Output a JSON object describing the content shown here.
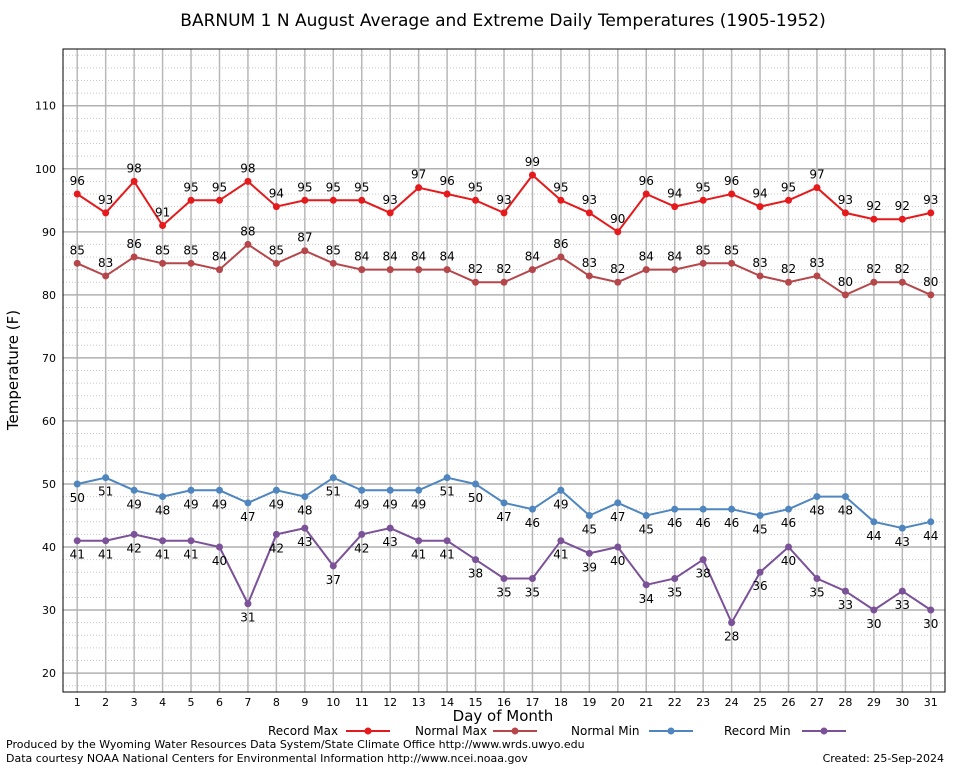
{
  "chart_data": {
    "type": "line",
    "title": "BARNUM 1 N August Average and Extreme Daily Temperatures (1905-1952)",
    "xlabel": "Day of Month",
    "ylabel": "Temperature (F)",
    "ylim": [
      17,
      119
    ],
    "y_ticks": [
      20,
      30,
      40,
      50,
      60,
      70,
      80,
      90,
      100,
      110
    ],
    "x": [
      1,
      2,
      3,
      4,
      5,
      6,
      7,
      8,
      9,
      10,
      11,
      12,
      13,
      14,
      15,
      16,
      17,
      18,
      19,
      20,
      21,
      22,
      23,
      24,
      25,
      26,
      27,
      28,
      29,
      30,
      31
    ],
    "grid": true,
    "legend_position": "bottom",
    "series": [
      {
        "name": "Record Max",
        "color": "#e41a1c",
        "label_pos": "above",
        "values": [
          96,
          93,
          98,
          91,
          95,
          95,
          98,
          94,
          95,
          95,
          95,
          93,
          97,
          96,
          95,
          93,
          99,
          95,
          93,
          90,
          96,
          94,
          95,
          96,
          94,
          95,
          97,
          93,
          92,
          92,
          93
        ]
      },
      {
        "name": "Normal Max",
        "color": "#b5474b",
        "label_pos": "above",
        "values": [
          85,
          83,
          86,
          85,
          85,
          84,
          88,
          85,
          87,
          85,
          84,
          84,
          84,
          84,
          82,
          82,
          84,
          86,
          83,
          82,
          84,
          84,
          85,
          85,
          83,
          82,
          83,
          80,
          82,
          82,
          80
        ]
      },
      {
        "name": "Normal Min",
        "color": "#4f86c0",
        "label_pos": "below",
        "values": [
          50,
          51,
          49,
          48,
          49,
          49,
          47,
          49,
          48,
          51,
          49,
          49,
          49,
          51,
          50,
          47,
          46,
          49,
          45,
          47,
          45,
          46,
          46,
          46,
          45,
          46,
          48,
          48,
          44,
          43,
          44
        ]
      },
      {
        "name": "Record Min",
        "color": "#7b5198",
        "label_pos": "below",
        "values": [
          41,
          41,
          42,
          41,
          41,
          40,
          31,
          42,
          43,
          37,
          42,
          43,
          41,
          41,
          38,
          35,
          35,
          41,
          39,
          40,
          34,
          35,
          38,
          28,
          36,
          40,
          35,
          33,
          30,
          33,
          30
        ]
      }
    ]
  },
  "footer": {
    "credit_line1": "Produced by the Wyoming Water Resources Data System/State Climate Office http://www.wrds.uwyo.edu",
    "credit_line2": "Data courtesy NOAA National Centers for Environmental Information http://www.ncei.noaa.gov",
    "created": "Created:  25-Sep-2024"
  }
}
